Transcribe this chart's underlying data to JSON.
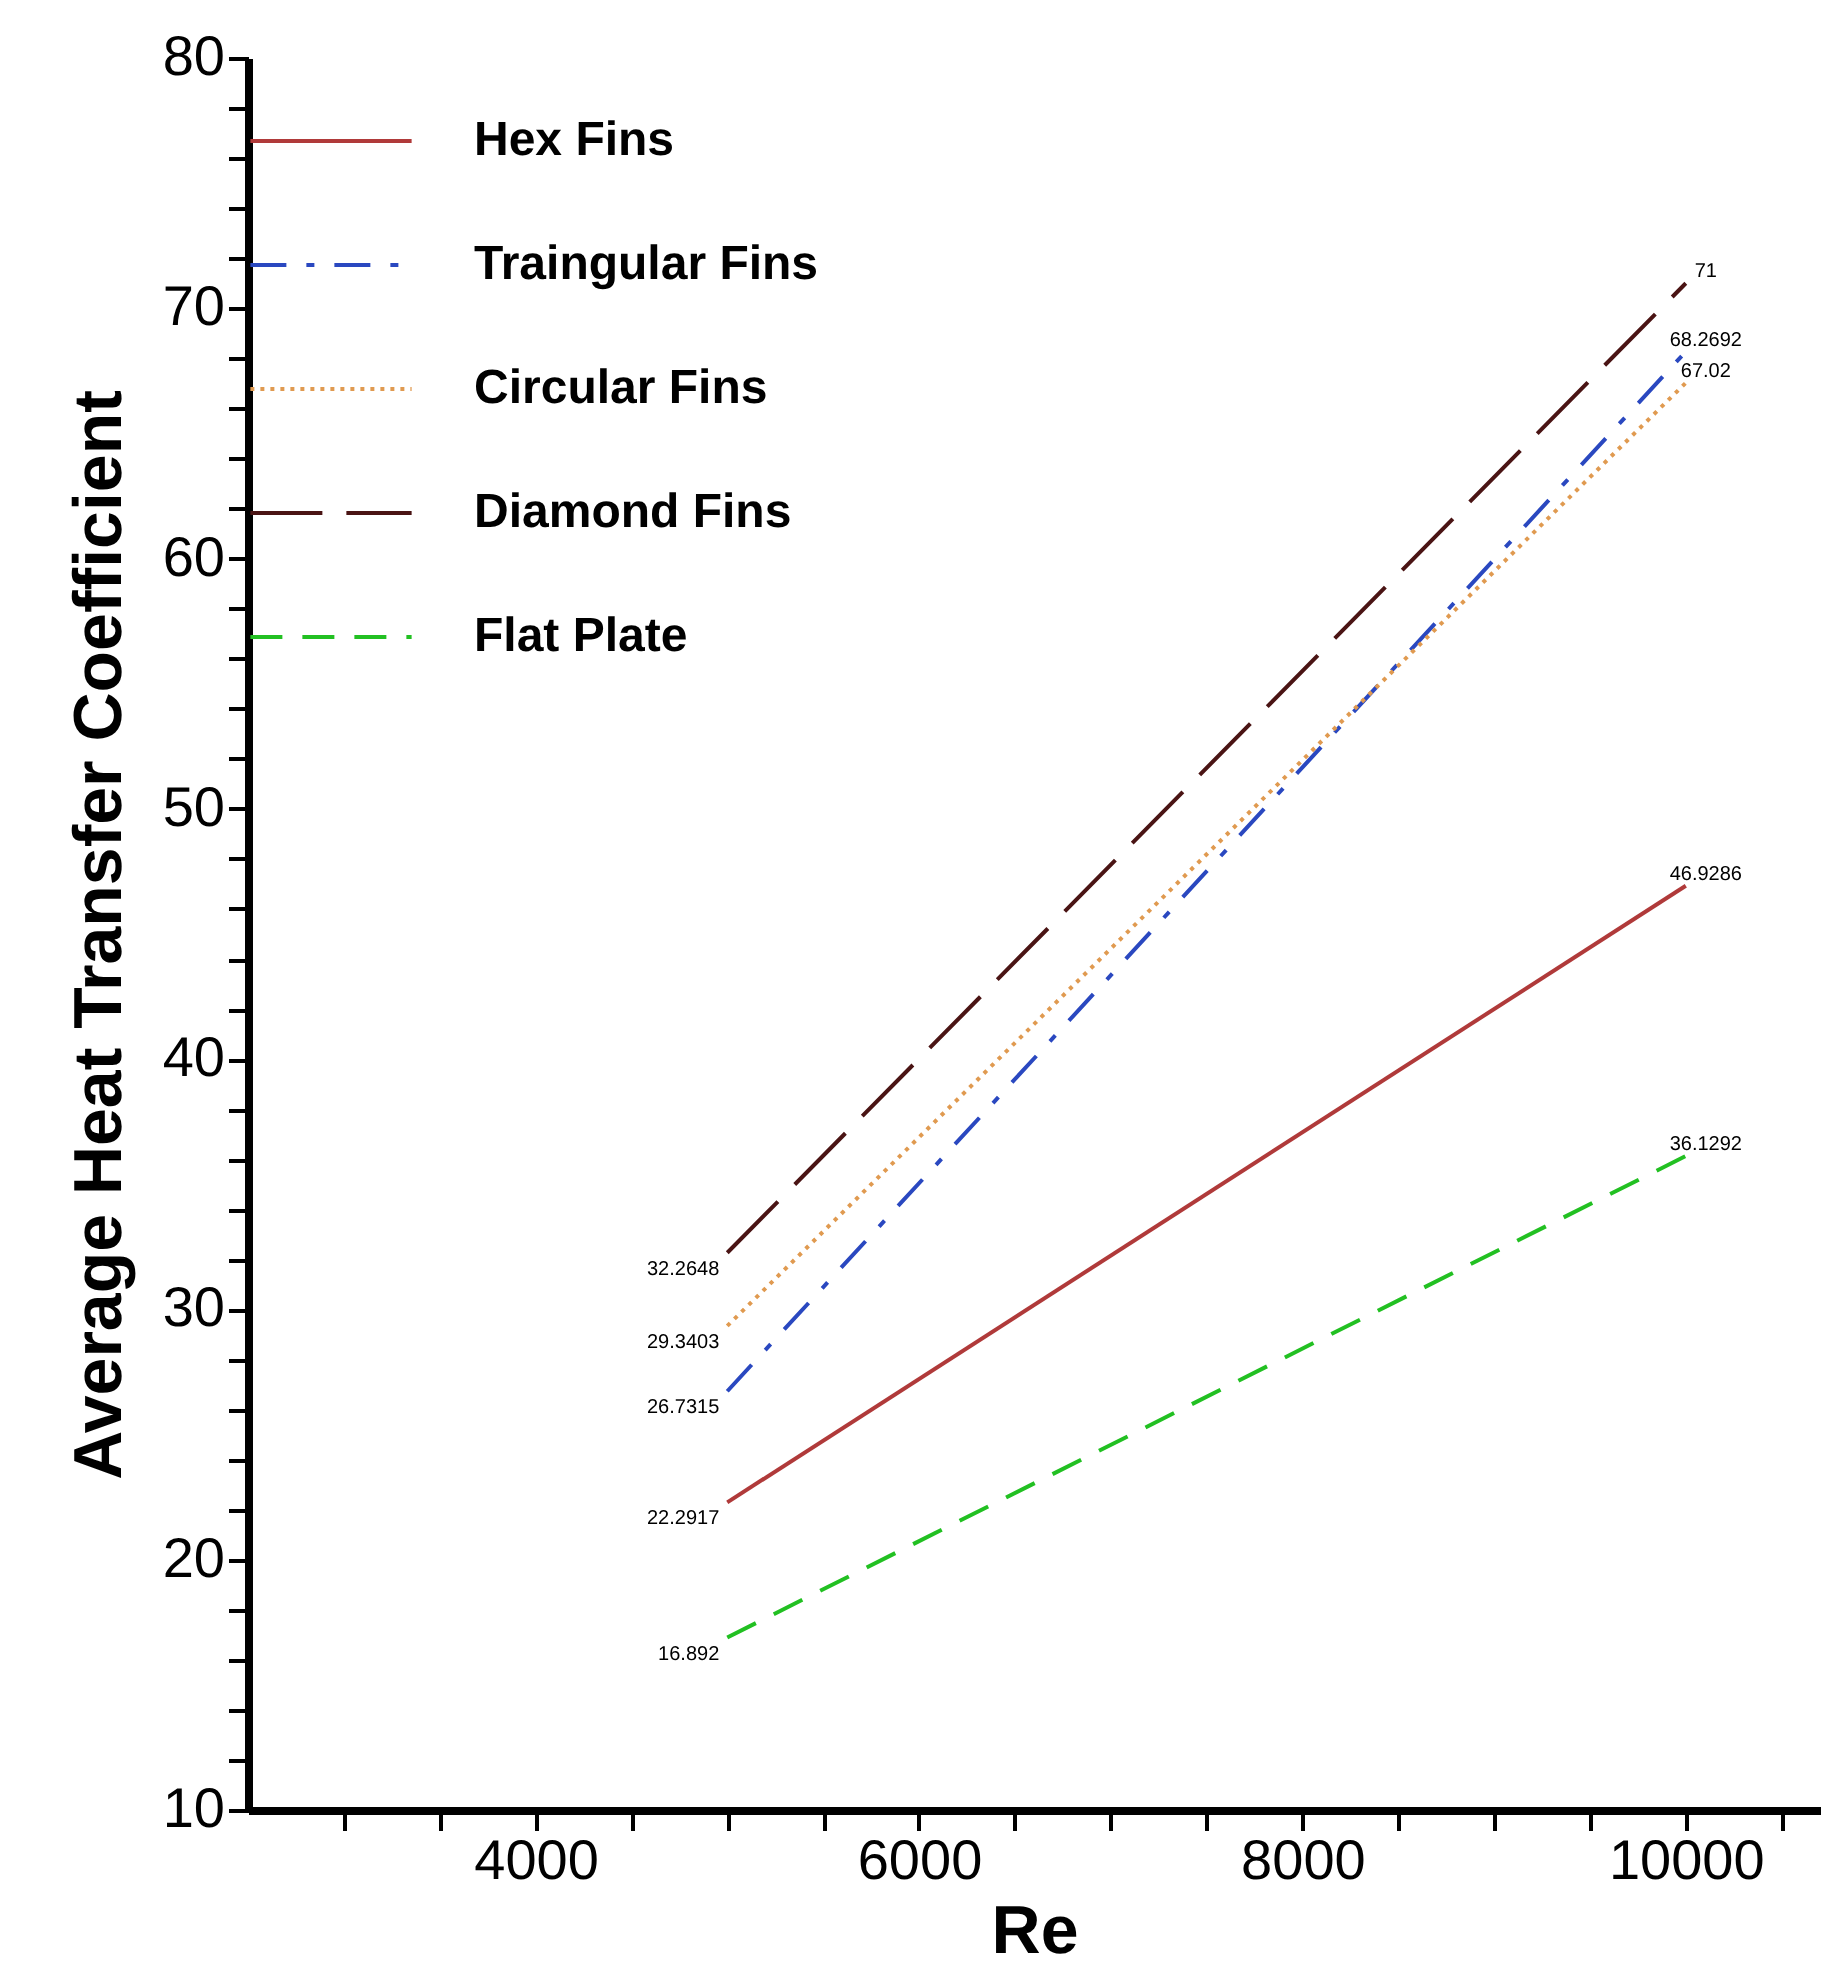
{
  "chart_data": {
    "type": "line",
    "xlabel": "Re",
    "ylabel": "Average Heat Transfer Coefficient",
    "x": [
      5000,
      10000
    ],
    "series": [
      {
        "name": "Hex Fins",
        "color": "#b03a3a",
        "line_style": "solid",
        "values": [
          22.2917,
          46.9286
        ]
      },
      {
        "name": "Traingular Fins",
        "color": "#2a48c0",
        "line_style": "dashdot",
        "values": [
          26.7315,
          68.2692
        ]
      },
      {
        "name": "Circular Fins",
        "color": "#e09a50",
        "line_style": "dotted",
        "values": [
          29.3403,
          67.02
        ]
      },
      {
        "name": "Diamond Fins",
        "color": "#4a1414",
        "line_style": "longdash",
        "values": [
          32.2648,
          71
        ]
      },
      {
        "name": "Flat Plate",
        "color": "#22c022",
        "line_style": "dashed",
        "values": [
          16.892,
          36.1292
        ]
      }
    ],
    "data_labels": true,
    "legend": "top left",
    "grid": false,
    "marker": "none",
    "xlim": [
      2500,
      10700
    ],
    "xticks": [
      {
        "value": 3000,
        "label": null
      },
      {
        "value": 3500,
        "label": null
      },
      4000,
      {
        "value": 4500,
        "label": null
      },
      {
        "value": 5000,
        "label": null
      },
      {
        "value": 5500,
        "label": null
      },
      6000,
      {
        "value": 6500,
        "label": null
      },
      {
        "value": 7000,
        "label": null
      },
      {
        "value": 7500,
        "label": null
      },
      8000,
      {
        "value": 8500,
        "label": null
      },
      {
        "value": 9000,
        "label": null
      },
      {
        "value": 9500,
        "label": null
      },
      10000,
      {
        "value": 10500,
        "label": null
      }
    ],
    "ylim": [
      10,
      80
    ],
    "yticks": [
      10,
      {
        "value": 12,
        "label": null
      },
      {
        "value": 14,
        "label": null
      },
      {
        "value": 16,
        "label": null
      },
      {
        "value": 18,
        "label": null
      },
      20,
      {
        "value": 22,
        "label": null
      },
      {
        "value": 24,
        "label": null
      },
      {
        "value": 26,
        "label": null
      },
      {
        "value": 28,
        "label": null
      },
      30,
      {
        "value": 32,
        "label": null
      },
      {
        "value": 34,
        "label": null
      },
      {
        "value": 36,
        "label": null
      },
      {
        "value": 38,
        "label": null
      },
      40,
      {
        "value": 42,
        "label": null
      },
      {
        "value": 44,
        "label": null
      },
      {
        "value": 46,
        "label": null
      },
      {
        "value": 48,
        "label": null
      },
      50,
      {
        "value": 52,
        "label": null
      },
      {
        "value": 54,
        "label": null
      },
      {
        "value": 56,
        "label": null
      },
      {
        "value": 58,
        "label": null
      },
      60,
      {
        "value": 62,
        "label": null
      },
      {
        "value": 64,
        "label": null
      },
      {
        "value": 66,
        "label": null
      },
      {
        "value": 68,
        "label": null
      },
      70,
      {
        "value": 72,
        "label": null
      },
      {
        "value": 74,
        "label": null
      },
      {
        "value": 76,
        "label": null
      },
      {
        "value": 78,
        "label": null
      },
      80
    ]
  }
}
